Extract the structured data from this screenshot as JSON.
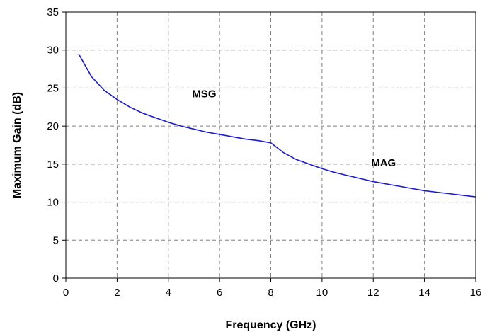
{
  "chart_data": {
    "type": "line",
    "title": "",
    "xlabel": "Frequency (GHz)",
    "ylabel": "Maximum Gain (dB)",
    "xlim": [
      0,
      16
    ],
    "ylim": [
      0,
      35
    ],
    "xticks": [
      0,
      2,
      4,
      6,
      8,
      10,
      12,
      14,
      16
    ],
    "yticks": [
      0,
      5,
      10,
      15,
      20,
      25,
      30,
      35
    ],
    "grid": true,
    "legend": "none",
    "series": [
      {
        "color": "#1c1ccf",
        "x": [
          0.5,
          1.0,
          1.5,
          2.0,
          2.5,
          3.0,
          3.5,
          4.0,
          4.5,
          5.0,
          5.5,
          6.0,
          6.5,
          7.0,
          7.5,
          8.0,
          8.5,
          9.0,
          9.5,
          10.0,
          10.5,
          11.0,
          11.5,
          12.0,
          12.5,
          13.0,
          13.5,
          14.0,
          14.5,
          15.0,
          15.5,
          16.0
        ],
        "y": [
          29.5,
          26.5,
          24.7,
          23.5,
          22.5,
          21.7,
          21.1,
          20.5,
          20.0,
          19.6,
          19.2,
          18.9,
          18.6,
          18.3,
          18.1,
          17.8,
          16.5,
          15.6,
          15.0,
          14.4,
          13.9,
          13.5,
          13.1,
          12.7,
          12.4,
          12.1,
          11.8,
          11.5,
          11.3,
          11.1,
          10.9,
          10.7
        ]
      }
    ],
    "annotations": [
      {
        "text": "MSG",
        "x": 5.4,
        "y": 23.8
      },
      {
        "text": "MAG",
        "x": 12.4,
        "y": 14.7
      }
    ]
  }
}
